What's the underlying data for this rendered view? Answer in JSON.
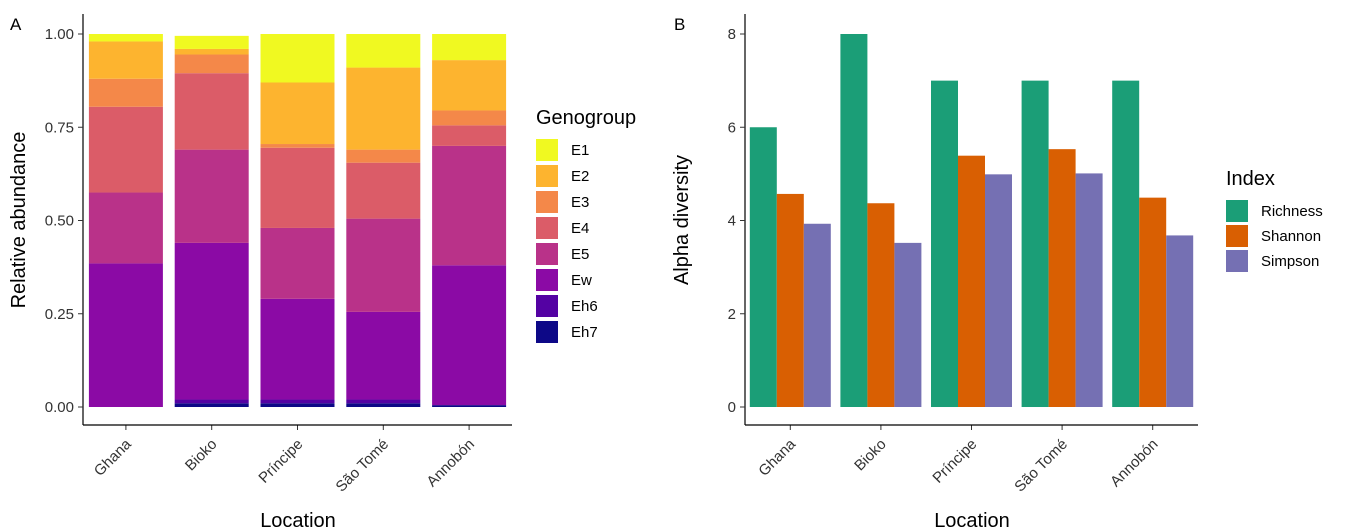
{
  "colors": {
    "genogroups": {
      "E1": "#F0F921",
      "E2": "#FDB42F",
      "E3": "#F48849",
      "E4": "#DB5C68",
      "E5": "#B93289",
      "Ew": "#8B0AA5",
      "Eh6": "#5402A3",
      "Eh7": "#0D0887"
    },
    "indices": {
      "Richness": "#1B9E77",
      "Shannon": "#D95F02",
      "Simpson": "#7570B3"
    }
  },
  "chart_data": [
    {
      "type": "bar",
      "stacked": true,
      "panel_label": "A",
      "xlabel": "Location",
      "ylabel": "Relative abundance",
      "ylim": [
        0,
        1
      ],
      "yticks": [
        0,
        0.25,
        0.5,
        0.75,
        1
      ],
      "ytick_labels": [
        "0.00",
        "0.25",
        "0.50",
        "0.75",
        "1.00"
      ],
      "categories": [
        "Ghana",
        "Bioko",
        "Príncipe",
        "São Tomé",
        "Annobón"
      ],
      "legend": {
        "title": "Genogroup",
        "position": "right"
      },
      "series": [
        {
          "name": "E1",
          "values": [
            0.02,
            0.035,
            0.13,
            0.09,
            0.07
          ]
        },
        {
          "name": "E2",
          "values": [
            0.1,
            0.015,
            0.165,
            0.22,
            0.135
          ]
        },
        {
          "name": "E3",
          "values": [
            0.075,
            0.05,
            0.01,
            0.035,
            0.04
          ]
        },
        {
          "name": "E4",
          "values": [
            0.23,
            0.205,
            0.215,
            0.15,
            0.055
          ]
        },
        {
          "name": "E5",
          "values": [
            0.19,
            0.25,
            0.19,
            0.25,
            0.32
          ]
        },
        {
          "name": "Ew",
          "values": [
            0.385,
            0.42,
            0.27,
            0.235,
            0.375
          ]
        },
        {
          "name": "Eh6",
          "values": [
            0.0,
            0.01,
            0.01,
            0.01,
            0.0
          ]
        },
        {
          "name": "Eh7",
          "values": [
            0.0,
            0.01,
            0.01,
            0.01,
            0.005
          ]
        }
      ]
    },
    {
      "type": "bar",
      "grouped": true,
      "panel_label": "B",
      "xlabel": "Location",
      "ylabel": "Alpha diversity",
      "ylim": [
        0,
        8
      ],
      "yticks": [
        0,
        2,
        4,
        6,
        8
      ],
      "ytick_labels": [
        "0",
        "2",
        "4",
        "6",
        "8"
      ],
      "categories": [
        "Ghana",
        "Bioko",
        "Príncipe",
        "São Tomé",
        "Annobón"
      ],
      "legend": {
        "title": "Index",
        "position": "right"
      },
      "series": [
        {
          "name": "Richness",
          "values": [
            6,
            8,
            7,
            7,
            7
          ]
        },
        {
          "name": "Shannon",
          "values": [
            4.57,
            4.37,
            5.39,
            5.53,
            4.49
          ]
        },
        {
          "name": "Simpson",
          "values": [
            3.93,
            3.52,
            4.99,
            5.01,
            3.68
          ]
        }
      ]
    }
  ]
}
